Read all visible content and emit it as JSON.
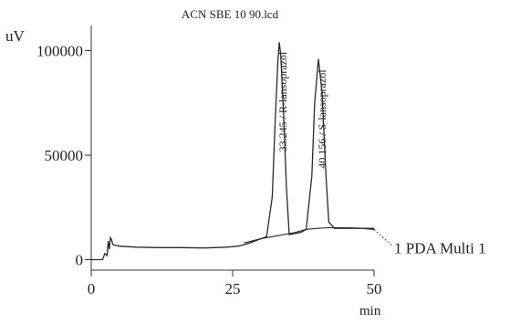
{
  "chart_data": {
    "type": "line",
    "title": "ACN SBE 10 90.lcd",
    "xlabel": "min",
    "ylabel": "uV",
    "xlim": [
      0,
      50
    ],
    "ylim": [
      -5000,
      112000
    ],
    "x_ticks": [
      0,
      25,
      50
    ],
    "x_tick_labels": [
      "0",
      "25",
      "50"
    ],
    "y_ticks": [
      0,
      50000,
      100000
    ],
    "y_tick_labels": [
      "0",
      "50000",
      "100000"
    ],
    "grid": false,
    "series": [
      {
        "name": "1 PDA Multi 1",
        "x": [
          0,
          2.0,
          2.4,
          2.8,
          3.0,
          3.2,
          3.4,
          3.6,
          3.8,
          4.0,
          4.5,
          5,
          8,
          12,
          16,
          20,
          24,
          26,
          27,
          28,
          29,
          30,
          31,
          32,
          32.5,
          33.0,
          33.245,
          33.5,
          34.0,
          34.5,
          35,
          36,
          37,
          38,
          39,
          39.5,
          40.156,
          40.8,
          41.5,
          42,
          43,
          45,
          48,
          50
        ],
        "y": [
          0,
          0,
          3000,
          2000,
          9000,
          5000,
          10500,
          9500,
          7500,
          7000,
          6800,
          6500,
          6000,
          5800,
          5800,
          5600,
          6000,
          6500,
          7200,
          8000,
          9000,
          10000,
          11000,
          30000,
          65000,
          95000,
          104000,
          98000,
          70000,
          35000,
          12000,
          12500,
          13000,
          14500,
          40000,
          75000,
          96000,
          80000,
          40000,
          18000,
          15000,
          15000,
          15000,
          14500
        ]
      }
    ],
    "baseline": {
      "x": [
        27,
        30,
        33,
        36,
        38,
        40,
        42,
        44,
        46,
        48,
        50
      ],
      "y": [
        8000,
        10000,
        11500,
        13000,
        14500,
        15000,
        15300,
        15300,
        15200,
        15100,
        15000
      ]
    },
    "annotations": [
      {
        "text": "33.245 / R-lansoprazol",
        "x": 33.245,
        "y": 104000
      },
      {
        "text": "40.156 / S-lansoprazol",
        "x": 40.156,
        "y": 96000
      },
      {
        "text": "1 PDA Multi 1",
        "x": 50,
        "y": 14500
      }
    ]
  }
}
